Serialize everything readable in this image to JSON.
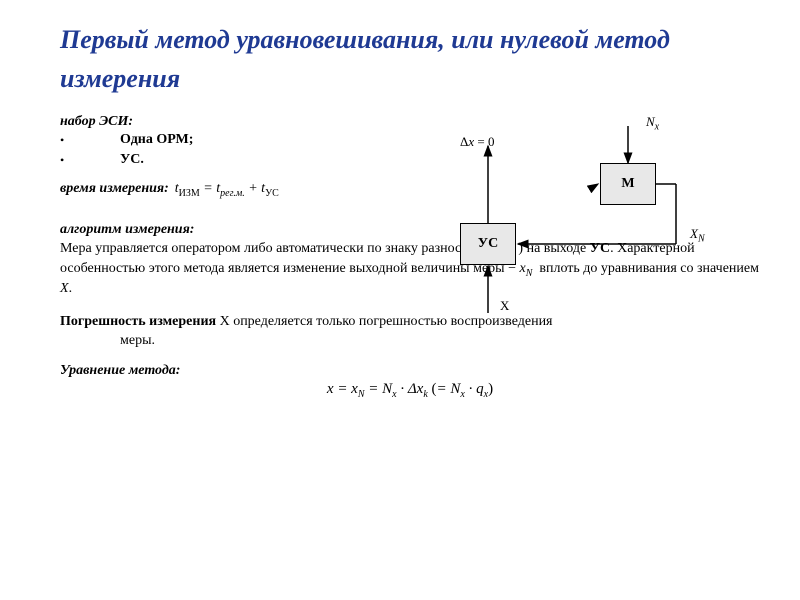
{
  "title": "Первый метод уравновешивания, или нулевой метод измерения",
  "set": {
    "label": "набор ЭСИ:",
    "items": [
      "Одна ОРМ;",
      "УС."
    ]
  },
  "time": {
    "label": "время измерения:",
    "formula_html": "t<span class='sub sub-roman'>ИЗМ</span> = t<span class='sub'>рег.м.</span> + t<span class='sub sub-roman'>УС</span>"
  },
  "algorithm": {
    "label": "алгоритм измерения:",
    "text_html": "Мера управляется оператором либо автоматически по знаку разности ( <i>X–x<span class='sub'>N</span></i> ) на выходе <b>УС</b>. Характерной особенностью этого метода является изменение выходной величины меры − <i>x<span class='sub'>N</span></i>&nbsp; вплоть до уравнивания со значением <i>X</i>."
  },
  "error": {
    "label": "Погрешность измерения",
    "text1": " X определяется только погрешностью воспроизведения",
    "text2": "меры."
  },
  "equation": {
    "label": "Уравнение метода:",
    "formula_html": "x = x<span class='sub'>N</span> = N<span class='sub'>x</span> · Δx<span class='sub'>k</span> <span class='plain'>(</span>= N<span class='sub'>x</span> · q<span class='sub'>x</span><span class='plain'>)</span>"
  },
  "diagram": {
    "box_m": "М",
    "box_us": "УС",
    "label_nx": "N<span class='sub'>x</span>",
    "label_deltax": "Δ<i>x</i> = 0",
    "label_XN": "X<span class='sub'>N</span>",
    "label_X": "X",
    "colors": {
      "box_fill": "#e8e8e8",
      "box_border": "#000000",
      "line": "#000000",
      "text": "#000000"
    }
  }
}
